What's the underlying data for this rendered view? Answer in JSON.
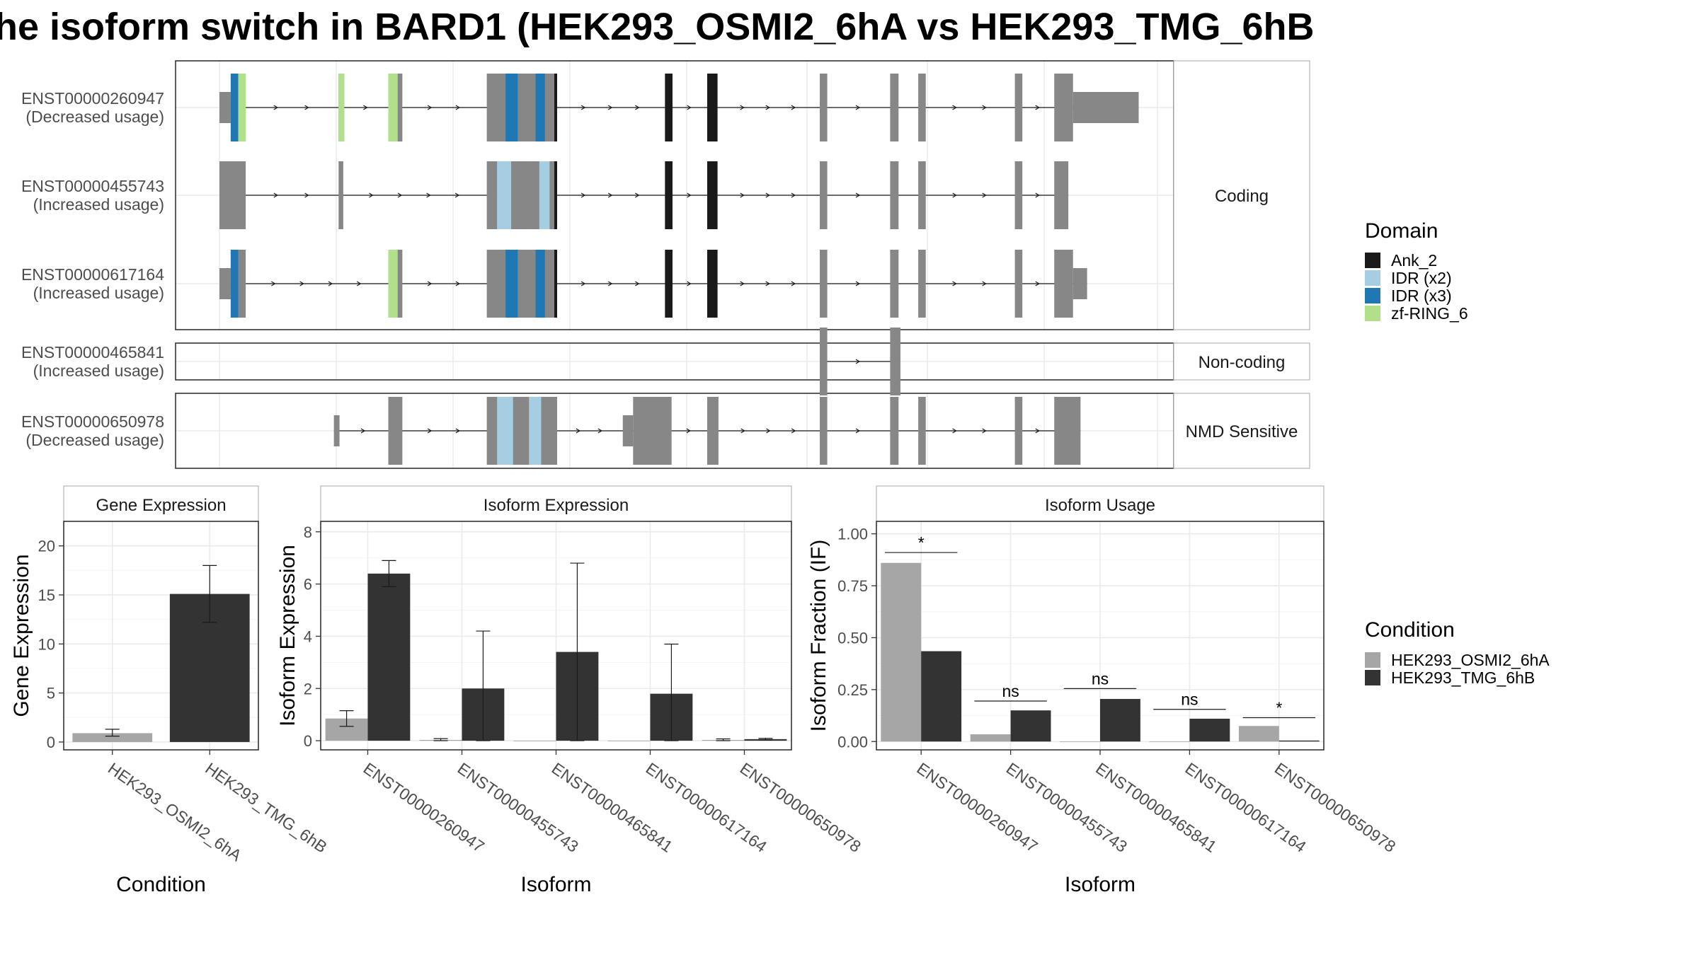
{
  "title": "he isoform switch in BARD1 (HEK293_OSMI2_6hA vs HEK293_TMG_6hB",
  "colors": {
    "exon": "#878787",
    "Ank_2": "#1a1a1a",
    "IDR (x2)": "#a6cee3",
    "IDR (x3)": "#1f78b4",
    "zf-RING_6": "#b2df8a",
    "cond_a": "#a6a6a6",
    "cond_b": "#333333",
    "grid": "#ebebeb",
    "panel_border": "#333333",
    "strip_fill": "#ffffff"
  },
  "structure": {
    "groups": [
      {
        "label": "Coding"
      },
      {
        "label": "Non-coding"
      },
      {
        "label": "NMD Sensitive"
      }
    ],
    "transcripts": [
      {
        "id": "ENST00000260947",
        "usage": "(Decreased usage)",
        "group": 0,
        "exons": [
          [
            0.0,
            0.012
          ],
          [
            0.012,
            0.028
          ],
          [
            0.127,
            0.133
          ],
          [
            0.18,
            0.195
          ],
          [
            0.285,
            0.36
          ],
          [
            0.475,
            0.483
          ],
          [
            0.52,
            0.531
          ],
          [
            0.64,
            0.648
          ],
          [
            0.715,
            0.724
          ],
          [
            0.745,
            0.753
          ],
          [
            0.848,
            0.856
          ],
          [
            0.89,
            0.91
          ],
          [
            0.91,
            0.98
          ]
        ],
        "domains": [
          [
            "IDR (x3)",
            0.012,
            0.02
          ],
          [
            "zf-RING_6",
            0.02,
            0.028
          ],
          [
            "zf-RING_6",
            0.127,
            0.133
          ],
          [
            "zf-RING_6",
            0.18,
            0.19
          ],
          [
            "IDR (x3)",
            0.305,
            0.318
          ],
          [
            "IDR (x3)",
            0.337,
            0.347
          ],
          [
            "Ank_2",
            0.357,
            0.36
          ],
          [
            "Ank_2",
            0.475,
            0.483
          ],
          [
            "Ank_2",
            0.52,
            0.531
          ]
        ]
      },
      {
        "id": "ENST00000455743",
        "usage": "(Increased usage)",
        "group": 0,
        "exons": [
          [
            0.0,
            0.028
          ],
          [
            0.127,
            0.132
          ],
          [
            0.285,
            0.296
          ],
          [
            0.296,
            0.36
          ],
          [
            0.475,
            0.483
          ],
          [
            0.52,
            0.531
          ],
          [
            0.64,
            0.648
          ],
          [
            0.715,
            0.724
          ],
          [
            0.745,
            0.753
          ],
          [
            0.848,
            0.856
          ],
          [
            0.89,
            0.905
          ]
        ],
        "domains": [
          [
            "IDR (x2)",
            0.296,
            0.311
          ],
          [
            "IDR (x2)",
            0.341,
            0.352
          ],
          [
            "Ank_2",
            0.357,
            0.36
          ],
          [
            "Ank_2",
            0.475,
            0.483
          ],
          [
            "Ank_2",
            0.52,
            0.531
          ]
        ]
      },
      {
        "id": "ENST00000617164",
        "usage": "(Increased usage)",
        "group": 0,
        "exons": [
          [
            0.0,
            0.012
          ],
          [
            0.012,
            0.028
          ],
          [
            0.18,
            0.195
          ],
          [
            0.285,
            0.36
          ],
          [
            0.475,
            0.483
          ],
          [
            0.52,
            0.531
          ],
          [
            0.64,
            0.648
          ],
          [
            0.715,
            0.724
          ],
          [
            0.745,
            0.753
          ],
          [
            0.848,
            0.856
          ],
          [
            0.89,
            0.91
          ],
          [
            0.91,
            0.925
          ]
        ],
        "domains": [
          [
            "IDR (x3)",
            0.012,
            0.02
          ],
          [
            "zf-RING_6",
            0.18,
            0.19
          ],
          [
            "IDR (x3)",
            0.305,
            0.318
          ],
          [
            "IDR (x3)",
            0.337,
            0.347
          ],
          [
            "Ank_2",
            0.357,
            0.36
          ],
          [
            "Ank_2",
            0.475,
            0.483
          ],
          [
            "Ank_2",
            0.52,
            0.531
          ]
        ]
      },
      {
        "id": "ENST00000465841",
        "usage": "(Increased usage)",
        "group": 1,
        "exons": [
          [
            0.64,
            0.648
          ],
          [
            0.715,
            0.726
          ]
        ],
        "domains": []
      },
      {
        "id": "ENST00000650978",
        "usage": "(Decreased usage)",
        "group": 2,
        "exons": [
          [
            0.122,
            0.128
          ],
          [
            0.18,
            0.195
          ],
          [
            0.285,
            0.36
          ],
          [
            0.43,
            0.441
          ],
          [
            0.441,
            0.482
          ],
          [
            0.52,
            0.532
          ],
          [
            0.64,
            0.648
          ],
          [
            0.715,
            0.724
          ],
          [
            0.745,
            0.753
          ],
          [
            0.848,
            0.856
          ],
          [
            0.89,
            0.918
          ]
        ],
        "domains": [
          [
            "IDR (x2)",
            0.296,
            0.313
          ],
          [
            "IDR (x2)",
            0.33,
            0.343
          ]
        ]
      }
    ]
  },
  "legend_domain": {
    "title": "Domain",
    "items": [
      "Ank_2",
      "IDR (x2)",
      "IDR (x3)",
      "zf-RING_6"
    ]
  },
  "legend_condition": {
    "title": "Condition",
    "items": [
      "HEK293_OSMI2_6hA",
      "HEK293_TMG_6hB"
    ]
  },
  "chart_data": [
    {
      "type": "bar",
      "title": "Gene Expression",
      "xlabel": "Condition",
      "ylabel": "Gene Expression",
      "categories": [
        "HEK293_OSMI2_6hA",
        "HEK293_TMG_6hB"
      ],
      "values": [
        0.9,
        15.1
      ],
      "errors": [
        [
          0.6,
          1.3
        ],
        [
          12.2,
          18.0
        ]
      ],
      "ylim": [
        -0.8,
        22.5
      ],
      "yticks": [
        0,
        5,
        10,
        15,
        20
      ]
    },
    {
      "type": "bar",
      "title": "Isoform Expression",
      "xlabel": "Isoform",
      "ylabel": "Isoform Expression",
      "categories": [
        "ENST00000260947",
        "ENST00000455743",
        "ENST00000465841",
        "ENST00000617164",
        "ENST00000650978"
      ],
      "series": [
        {
          "name": "HEK293_OSMI2_6hA",
          "values": [
            0.85,
            0.03,
            0.0,
            0.0,
            0.03
          ],
          "errors": [
            [
              0.55,
              1.15
            ],
            [
              0.0,
              0.08
            ],
            [
              0.0,
              0.0
            ],
            [
              0.0,
              0.0
            ],
            [
              0.0,
              0.07
            ]
          ]
        },
        {
          "name": "HEK293_TMG_6hB",
          "values": [
            6.4,
            2.0,
            3.4,
            1.8,
            0.06
          ],
          "errors": [
            [
              5.9,
              6.9
            ],
            [
              0.0,
              4.2
            ],
            [
              0.0,
              6.8
            ],
            [
              0.0,
              3.7
            ],
            [
              0.03,
              0.09
            ]
          ]
        }
      ],
      "ylim": [
        -0.35,
        8.4
      ],
      "yticks": [
        0,
        2,
        4,
        6,
        8
      ]
    },
    {
      "type": "bar",
      "title": "Isoform Usage",
      "xlabel": "Isoform",
      "ylabel": "Isoform Fraction (IF)",
      "categories": [
        "ENST00000260947",
        "ENST00000455743",
        "ENST00000465841",
        "ENST00000617164",
        "ENST00000650978"
      ],
      "series": [
        {
          "name": "HEK293_OSMI2_6hA",
          "values": [
            0.86,
            0.035,
            0.0,
            0.0,
            0.075
          ]
        },
        {
          "name": "HEK293_TMG_6hB",
          "values": [
            0.435,
            0.15,
            0.205,
            0.11,
            0.005
          ]
        }
      ],
      "significance": [
        {
          "label": "*",
          "y": 0.91
        },
        {
          "label": "ns",
          "y": 0.195
        },
        {
          "label": "ns",
          "y": 0.255
        },
        {
          "label": "ns",
          "y": 0.155
        },
        {
          "label": "*",
          "y": 0.115
        }
      ],
      "ylim": [
        -0.04,
        1.06
      ],
      "yticks": [
        "0.00",
        "0.25",
        "0.50",
        "0.75",
        "1.00"
      ]
    }
  ]
}
